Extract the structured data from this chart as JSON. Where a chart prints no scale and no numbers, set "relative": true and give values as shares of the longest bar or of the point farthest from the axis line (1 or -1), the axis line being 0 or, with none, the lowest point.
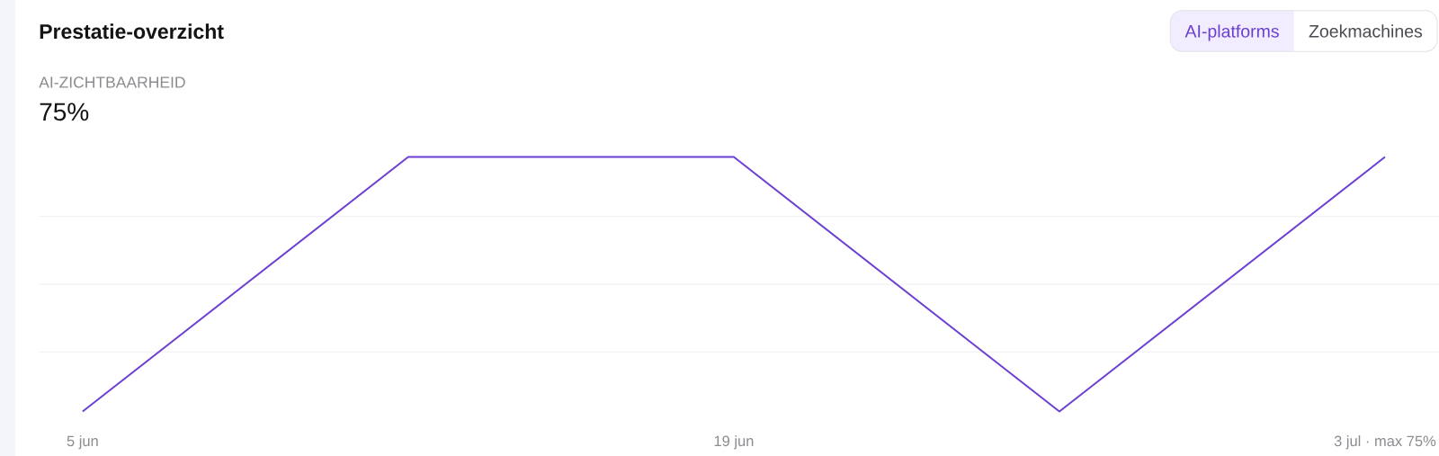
{
  "chart_data": {
    "type": "line",
    "title": "Prestatie-overzicht",
    "subtitle": "AI-ZICHTBAARHEID",
    "annotations": [
      "75%",
      "AI-platforms",
      "Zoekmachines"
    ],
    "categories": [
      "5 jun",
      null,
      "19 jun",
      null,
      "3 jul · max 75%"
    ],
    "values": [
      0,
      1,
      1,
      0,
      1
    ],
    "color": "#6b3fd4",
    "relative": true,
    "grid": "y"
  }
}
